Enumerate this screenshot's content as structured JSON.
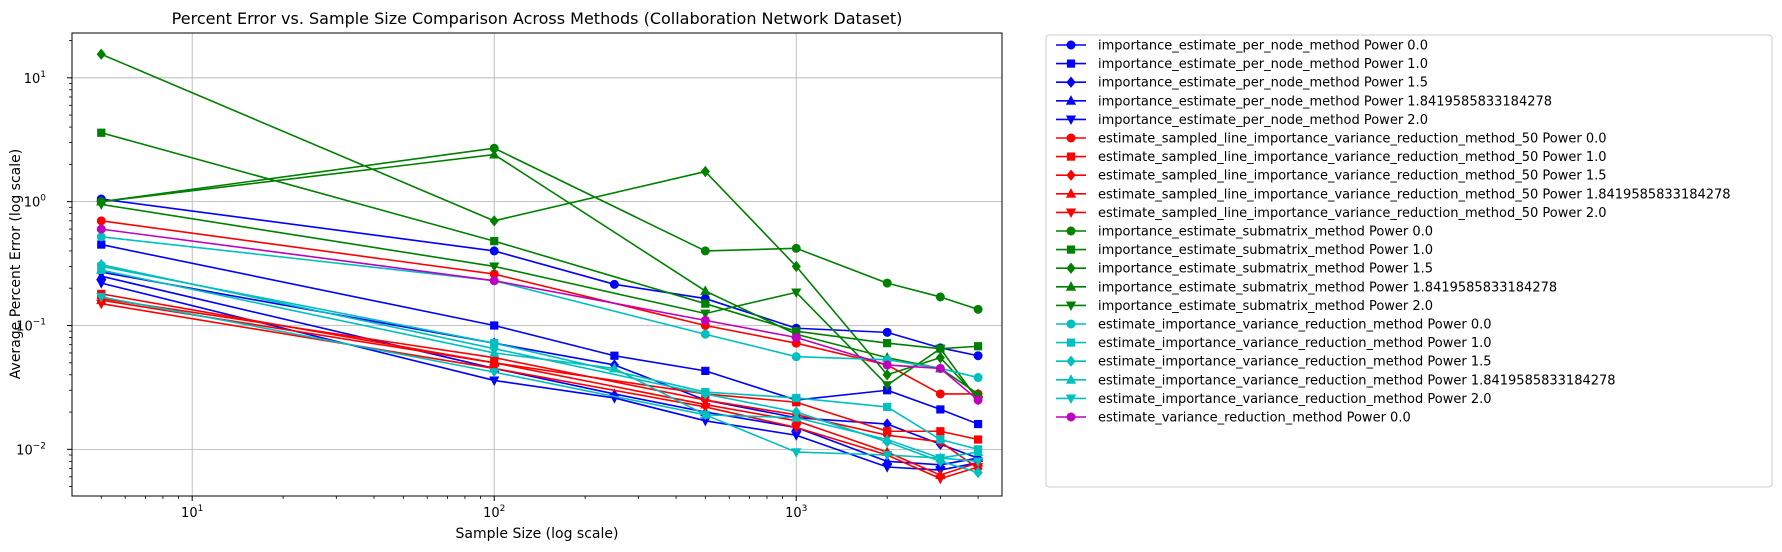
{
  "chart_data": {
    "type": "line",
    "title": "Percent Error vs. Sample Size Comparison Across Methods (Collaboration Network Dataset)",
    "xlabel": "Sample Size (log scale)",
    "ylabel": "Average Percent Error (log scale)",
    "xscale": "log",
    "yscale": "log",
    "xlim": [
      4,
      4800
    ],
    "ylim": [
      0.0042,
      23
    ],
    "x_ticks": [
      {
        "value": 10,
        "base": "10",
        "exp": "1"
      },
      {
        "value": 100,
        "base": "10",
        "exp": "2"
      },
      {
        "value": 1000,
        "base": "10",
        "exp": "3"
      }
    ],
    "y_ticks": [
      {
        "value": 0.01,
        "base": "10",
        "exp": "−2"
      },
      {
        "value": 0.1,
        "base": "10",
        "exp": "−1"
      },
      {
        "value": 1,
        "base": "10",
        "exp": "0"
      },
      {
        "value": 10,
        "base": "10",
        "exp": "1"
      }
    ],
    "grid": true,
    "legend_position": "outside-right",
    "colors": {
      "blue": "#0000ff",
      "red": "#ff0000",
      "green": "#008000",
      "cyan": "#00bfbf",
      "magenta": "#bf00bf"
    },
    "series": [
      {
        "name": "importance_estimate_per_node_method Power 0.0",
        "color": "#0000ff",
        "marker": "circle",
        "x": [
          5,
          100,
          250,
          500,
          1000,
          2000,
          3000,
          4000
        ],
        "y": [
          1.05,
          0.4,
          0.215,
          0.165,
          0.095,
          0.088,
          0.066,
          0.057
        ]
      },
      {
        "name": "importance_estimate_per_node_method Power 1.0",
        "color": "#0000ff",
        "marker": "square",
        "x": [
          5,
          100,
          250,
          500,
          1000,
          2000,
          3000,
          4000
        ],
        "y": [
          0.45,
          0.1,
          0.057,
          0.043,
          0.025,
          0.03,
          0.021,
          0.016
        ]
      },
      {
        "name": "importance_estimate_per_node_method Power 1.5",
        "color": "#0000ff",
        "marker": "diamond",
        "x": [
          5,
          100,
          250,
          500,
          1000,
          2000,
          3000,
          4000
        ],
        "y": [
          0.27,
          0.072,
          0.048,
          0.025,
          0.018,
          0.016,
          0.011,
          0.0085
        ]
      },
      {
        "name": "importance_estimate_per_node_method Power 1.8419585833184278",
        "color": "#0000ff",
        "marker": "triangle-up",
        "x": [
          5,
          100,
          250,
          500,
          1000,
          2000,
          3000,
          4000
        ],
        "y": [
          0.25,
          0.045,
          0.028,
          0.02,
          0.015,
          0.008,
          0.0075,
          0.0085
        ]
      },
      {
        "name": "importance_estimate_per_node_method Power 2.0",
        "color": "#0000ff",
        "marker": "triangle-down",
        "x": [
          5,
          100,
          250,
          500,
          1000,
          2000,
          3000,
          4000
        ],
        "y": [
          0.22,
          0.036,
          0.026,
          0.017,
          0.013,
          0.0072,
          0.0068,
          0.0078
        ]
      },
      {
        "name": "estimate_sampled_line_importance_variance_reduction_method_50 Power 0.0",
        "color": "#ff0000",
        "marker": "circle",
        "x": [
          5,
          100,
          500,
          1000,
          2000,
          3000,
          4000
        ],
        "y": [
          0.7,
          0.26,
          0.1,
          0.072,
          0.048,
          0.028,
          0.028
        ]
      },
      {
        "name": "estimate_sampled_line_importance_variance_reduction_method_50 Power 1.0",
        "color": "#ff0000",
        "marker": "square",
        "x": [
          5,
          100,
          500,
          1000,
          2000,
          3000,
          4000
        ],
        "y": [
          0.18,
          0.05,
          0.028,
          0.024,
          0.014,
          0.014,
          0.012
        ]
      },
      {
        "name": "estimate_sampled_line_importance_variance_reduction_method_50 Power 1.5",
        "color": "#ff0000",
        "marker": "diamond",
        "x": [
          5,
          100,
          500,
          1000,
          2000,
          3000,
          4000
        ],
        "y": [
          0.165,
          0.055,
          0.025,
          0.019,
          0.013,
          0.0115,
          0.007
        ]
      },
      {
        "name": "estimate_sampled_line_importance_variance_reduction_method_50 Power 1.8419585833184278",
        "color": "#ff0000",
        "marker": "triangle-up",
        "x": [
          5,
          100,
          500,
          1000,
          2000,
          3000,
          4000
        ],
        "y": [
          0.16,
          0.05,
          0.023,
          0.017,
          0.0095,
          0.0062,
          0.0078
        ]
      },
      {
        "name": "estimate_sampled_line_importance_variance_reduction_method_50 Power 2.0",
        "color": "#ff0000",
        "marker": "triangle-down",
        "x": [
          5,
          100,
          500,
          1000,
          2000,
          3000,
          4000
        ],
        "y": [
          0.15,
          0.045,
          0.022,
          0.015,
          0.009,
          0.0058,
          0.0072
        ]
      },
      {
        "name": "importance_estimate_submatrix_method Power 0.0",
        "color": "#008000",
        "marker": "circle",
        "x": [
          5,
          100,
          500,
          1000,
          2000,
          3000,
          4000
        ],
        "y": [
          1.0,
          2.7,
          0.4,
          0.42,
          0.22,
          0.17,
          0.135
        ]
      },
      {
        "name": "importance_estimate_submatrix_method Power 1.0",
        "color": "#008000",
        "marker": "square",
        "x": [
          5,
          100,
          500,
          1000,
          2000,
          3000,
          4000
        ],
        "y": [
          3.6,
          0.48,
          0.15,
          0.09,
          0.072,
          0.065,
          0.068
        ]
      },
      {
        "name": "importance_estimate_submatrix_method Power 1.5",
        "color": "#008000",
        "marker": "diamond",
        "x": [
          5,
          100,
          500,
          1000,
          2000,
          3000,
          4000
        ],
        "y": [
          15.5,
          0.7,
          1.75,
          0.3,
          0.04,
          0.055,
          0.026
        ]
      },
      {
        "name": "importance_estimate_submatrix_method Power 1.8419585833184278",
        "color": "#008000",
        "marker": "triangle-up",
        "x": [
          5,
          100,
          500,
          1000,
          2000,
          3000,
          4000
        ],
        "y": [
          1.0,
          2.4,
          0.19,
          0.085,
          0.055,
          0.045,
          0.028
        ]
      },
      {
        "name": "importance_estimate_submatrix_method Power 2.0",
        "color": "#008000",
        "marker": "triangle-down",
        "x": [
          5,
          100,
          500,
          1000,
          2000,
          3000,
          4000
        ],
        "y": [
          0.95,
          0.3,
          0.125,
          0.185,
          0.033,
          0.065,
          0.025
        ]
      },
      {
        "name": "estimate_importance_variance_reduction_method Power 0.0",
        "color": "#00bfbf",
        "marker": "circle",
        "x": [
          5,
          100,
          500,
          1000,
          2000,
          3000,
          4000
        ],
        "y": [
          0.52,
          0.23,
          0.085,
          0.056,
          0.053,
          0.045,
          0.038
        ]
      },
      {
        "name": "estimate_importance_variance_reduction_method Power 1.0",
        "color": "#00bfbf",
        "marker": "square",
        "x": [
          5,
          100,
          500,
          1000,
          2000,
          3000,
          4000
        ],
        "y": [
          0.3,
          0.072,
          0.029,
          0.026,
          0.022,
          0.012,
          0.01
        ]
      },
      {
        "name": "estimate_importance_variance_reduction_method Power 1.5",
        "color": "#00bfbf",
        "marker": "diamond",
        "x": [
          5,
          100,
          500,
          1000,
          2000,
          3000,
          4000
        ],
        "y": [
          0.31,
          0.065,
          0.028,
          0.02,
          0.0115,
          0.008,
          0.0065
        ]
      },
      {
        "name": "estimate_importance_variance_reduction_method Power 1.8419585833184278",
        "color": "#00bfbf",
        "marker": "triangle-up",
        "x": [
          5,
          100,
          250,
          500,
          1000,
          2000,
          3000,
          4000
        ],
        "y": [
          0.28,
          0.06,
          0.045,
          0.019,
          0.018,
          0.012,
          0.0085,
          0.0095
        ]
      },
      {
        "name": "estimate_importance_variance_reduction_method Power 2.0",
        "color": "#00bfbf",
        "marker": "triangle-down",
        "x": [
          5,
          100,
          500,
          1000,
          2000,
          3000,
          4000
        ],
        "y": [
          0.17,
          0.042,
          0.019,
          0.0095,
          0.009,
          0.0085,
          0.008
        ]
      },
      {
        "name": "estimate_variance_reduction_method Power 0.0",
        "color": "#bf00bf",
        "marker": "circle",
        "x": [
          5,
          100,
          500,
          1000,
          2000,
          3000,
          4000
        ],
        "y": [
          0.6,
          0.23,
          0.11,
          0.08,
          0.048,
          0.045,
          0.025
        ]
      }
    ]
  }
}
